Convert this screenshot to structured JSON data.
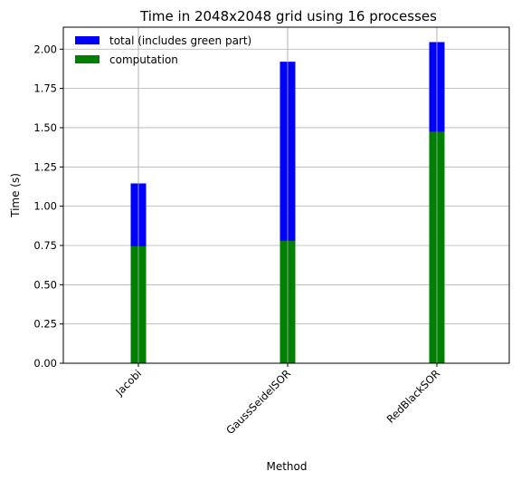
{
  "chart_data": {
    "type": "bar",
    "stacked": false,
    "overlaid": true,
    "title": "Time in 2048x2048 grid using 16 processes",
    "xlabel": "Method",
    "ylabel": "Time (s)",
    "categories": [
      "Jacobi",
      "GaussSeidelSOR",
      "RedBlackSOR"
    ],
    "series": [
      {
        "name": "total (includes green part)",
        "color": "#0000ff",
        "values": [
          1.145,
          1.92,
          2.045
        ]
      },
      {
        "name": "computation",
        "color": "#008000",
        "values": [
          0.745,
          0.78,
          1.475
        ]
      }
    ],
    "ylim": [
      0,
      2.14
    ],
    "yticks": [
      "0.00",
      "0.25",
      "0.50",
      "0.75",
      "1.00",
      "1.25",
      "1.50",
      "1.75",
      "2.00"
    ],
    "ytick_values": [
      0,
      0.25,
      0.5,
      0.75,
      1.0,
      1.25,
      1.5,
      1.75,
      2.0
    ],
    "grid": true,
    "legend_position": "top-left",
    "xtick_rotation": 45
  }
}
